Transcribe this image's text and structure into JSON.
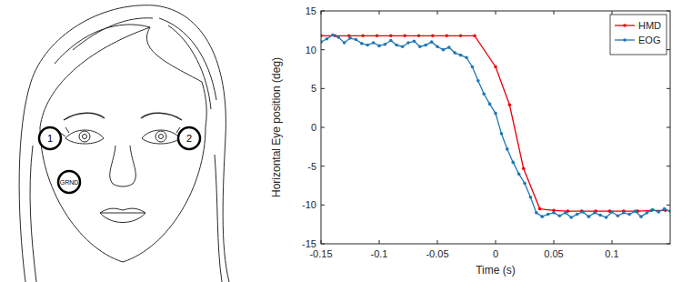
{
  "illustration": {
    "labels": [
      "1",
      "2",
      "GRND"
    ]
  },
  "chart_data": {
    "type": "line",
    "xlabel": "Time (s)",
    "ylabel": "Horizontal Eye position (deg)",
    "xlim": [
      -0.15,
      0.15
    ],
    "ylim": [
      -15,
      15
    ],
    "xticks": [
      -0.15,
      -0.1,
      -0.05,
      0,
      0.05,
      0.1
    ],
    "yticks": [
      -15,
      -10,
      -5,
      0,
      5,
      10,
      15
    ],
    "grid": false,
    "legend": "northeast",
    "series": [
      {
        "name": "HMD",
        "color": "#e8000b",
        "marker": "dot",
        "line_style": "solid",
        "x": [
          -0.15,
          -0.138,
          -0.126,
          -0.114,
          -0.102,
          -0.09,
          -0.078,
          -0.066,
          -0.054,
          -0.042,
          -0.03,
          -0.018,
          0.0,
          0.012,
          0.024,
          0.038,
          0.05,
          0.062,
          0.074,
          0.086,
          0.098,
          0.11,
          0.122,
          0.134,
          0.146
        ],
        "values": [
          11.8,
          11.8,
          11.8,
          11.8,
          11.8,
          11.8,
          11.8,
          11.8,
          11.8,
          11.8,
          11.8,
          11.8,
          7.8,
          2.9,
          -5.3,
          -10.5,
          -10.7,
          -10.8,
          -10.8,
          -10.8,
          -10.8,
          -10.8,
          -10.8,
          -10.7,
          -10.7
        ]
      },
      {
        "name": "EOG",
        "color": "#1f77b4",
        "marker": "dot",
        "line_style": "solid",
        "x": [
          -0.15,
          -0.145,
          -0.14,
          -0.135,
          -0.13,
          -0.125,
          -0.12,
          -0.115,
          -0.11,
          -0.105,
          -0.1,
          -0.095,
          -0.09,
          -0.085,
          -0.08,
          -0.075,
          -0.07,
          -0.065,
          -0.06,
          -0.055,
          -0.05,
          -0.045,
          -0.04,
          -0.035,
          -0.03,
          -0.025,
          -0.02,
          -0.015,
          -0.01,
          -0.005,
          0.0,
          0.005,
          0.01,
          0.015,
          0.02,
          0.025,
          0.03,
          0.035,
          0.04,
          0.045,
          0.05,
          0.055,
          0.06,
          0.065,
          0.07,
          0.075,
          0.08,
          0.085,
          0.09,
          0.095,
          0.1,
          0.105,
          0.11,
          0.115,
          0.12,
          0.125,
          0.13,
          0.135,
          0.14,
          0.145,
          0.15
        ],
        "values": [
          11.0,
          11.4,
          11.9,
          11.6,
          10.9,
          11.5,
          11.3,
          10.8,
          10.6,
          10.9,
          10.5,
          10.7,
          11.2,
          10.6,
          10.4,
          10.9,
          11.1,
          10.4,
          10.6,
          11.0,
          10.4,
          10.0,
          10.3,
          9.6,
          9.3,
          9.0,
          7.8,
          6.0,
          4.3,
          3.0,
          1.8,
          -0.8,
          -2.8,
          -4.5,
          -6.0,
          -7.2,
          -9.0,
          -11.0,
          -11.5,
          -11.2,
          -11.0,
          -11.4,
          -11.0,
          -11.6,
          -11.2,
          -10.9,
          -11.5,
          -11.0,
          -11.3,
          -11.6,
          -10.9,
          -11.4,
          -11.0,
          -11.2,
          -10.8,
          -11.5,
          -11.0,
          -10.6,
          -10.9,
          -10.5,
          -10.8
        ]
      }
    ]
  }
}
